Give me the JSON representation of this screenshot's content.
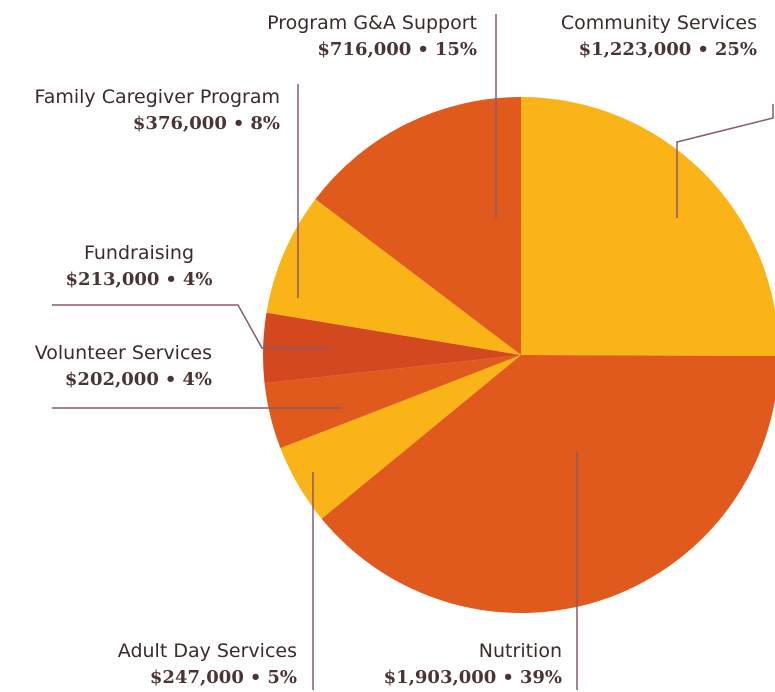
{
  "chart_data": {
    "type": "pie",
    "slices": [
      {
        "label": "Community Services",
        "amount": "$1,223,000",
        "percent": "25%",
        "value": 1223000,
        "color": "#fbb417"
      },
      {
        "label": "Nutrition",
        "amount": "$1,903,000",
        "percent": "39%",
        "value": 1903000,
        "color": "#df5a1c"
      },
      {
        "label": "Adult Day Services",
        "amount": "$247,000",
        "percent": "5%",
        "value": 247000,
        "color": "#fbb417"
      },
      {
        "label": "Volunteer Services",
        "amount": "$202,000",
        "percent": "4%",
        "value": 202000,
        "color": "#df5a1c"
      },
      {
        "label": "Fundraising",
        "amount": "$213,000",
        "percent": "4%",
        "value": 213000,
        "color": "#d4481f"
      },
      {
        "label": "Family Caregiver Program",
        "amount": "$376,000",
        "percent": "8%",
        "value": 376000,
        "color": "#fbb417"
      },
      {
        "label": "Program G&A Support",
        "amount": "$716,000",
        "percent": "15%",
        "value": 716000,
        "color": "#df5a1c"
      }
    ],
    "value_separator": "•",
    "leader_color": "#8a5a6a"
  }
}
